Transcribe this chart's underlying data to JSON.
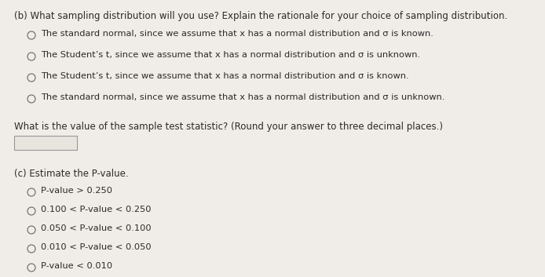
{
  "bg_color": "#f0ede8",
  "text_color": "#2a2a2a",
  "part_b_header": "(b) What sampling distribution will you use? Explain the rationale for your choice of sampling distribution.",
  "options_b": [
    "The standard normal, since we assume that x has a normal distribution and σ is known.",
    "The Student’s t, since we assume that x has a normal distribution and σ is unknown.",
    "The Student’s t, since we assume that x has a normal distribution and σ is known.",
    "The standard normal, since we assume that x has a normal distribution and σ is unknown."
  ],
  "test_stat_label": "What is the value of the sample test statistic? (Round your answer to three decimal places.)",
  "part_c_header": "(c) Estimate the P-value.",
  "options_c": [
    "P-value > 0.250",
    "0.100 < P-value < 0.250",
    "0.050 < P-value < 0.100",
    "0.010 < P-value < 0.050",
    "P-value < 0.010"
  ],
  "font_size_header": 8.5,
  "font_size_option": 8.2,
  "font_size_label": 8.5,
  "font_size_c_header": 8.5,
  "font_size_c_option": 8.2
}
